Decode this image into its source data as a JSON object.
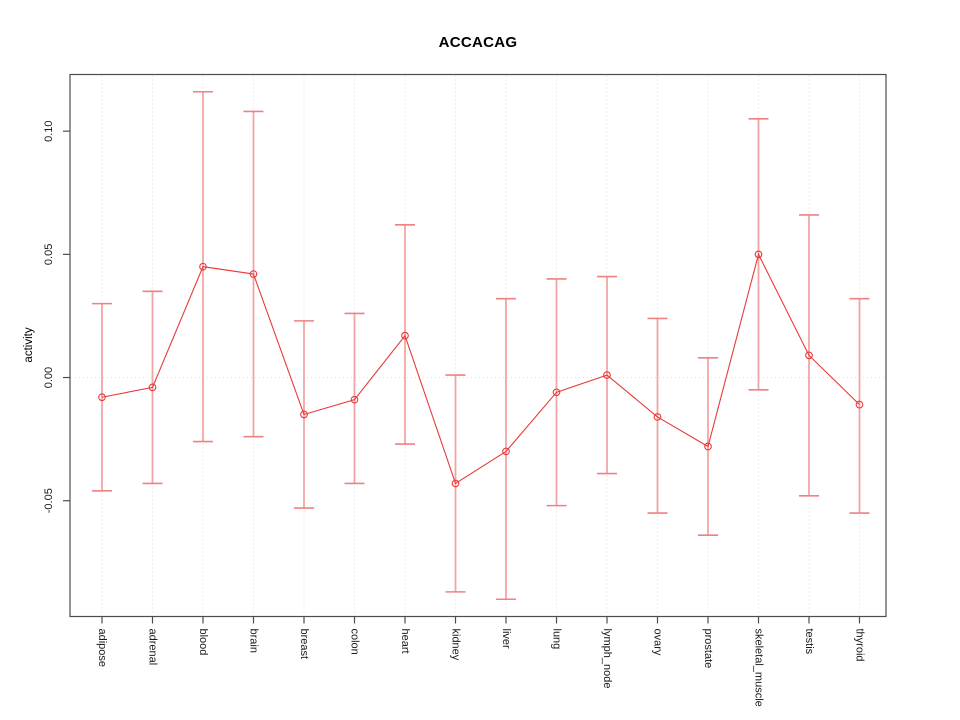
{
  "chart_data": {
    "type": "line",
    "title": "ACCACAG",
    "ylabel": "activity",
    "xlabel": "",
    "legend": "none",
    "grid": "vertical-dotted",
    "zero_line_dotted": true,
    "categories": [
      "adipose",
      "adrenal",
      "blood",
      "brain",
      "breast",
      "colon",
      "heart",
      "kidney",
      "liver",
      "lung",
      "lymph_node",
      "ovary",
      "prostate",
      "skeletal_muscle",
      "testis",
      "thyroid"
    ],
    "series": [
      {
        "name": "activity",
        "values": [
          -0.008,
          -0.004,
          0.045,
          0.042,
          -0.015,
          -0.009,
          0.017,
          -0.043,
          -0.03,
          -0.006,
          0.001,
          -0.016,
          -0.028,
          0.05,
          0.009,
          -0.011
        ]
      }
    ],
    "error_low": [
      -0.046,
      -0.043,
      -0.026,
      -0.024,
      -0.053,
      -0.043,
      -0.027,
      -0.087,
      -0.09,
      -0.052,
      -0.039,
      -0.055,
      -0.064,
      -0.005,
      -0.048,
      -0.055
    ],
    "error_high": [
      0.03,
      0.035,
      0.116,
      0.108,
      0.023,
      0.026,
      0.062,
      0.001,
      0.032,
      0.04,
      0.041,
      0.024,
      0.008,
      0.105,
      0.066,
      0.032
    ],
    "yticks": [
      -0.05,
      0,
      0.05,
      0.1
    ],
    "ytick_labels": [
      "-0.05",
      "0.00",
      "0.05",
      "0.10"
    ],
    "ylim": [
      -0.097,
      0.123
    ],
    "marker": "open-circle",
    "colors": {
      "line": "#e73b3b",
      "marker": "#e73b3b",
      "error_bar": "#f29b9b",
      "error_cap": "#ee8181",
      "grid": "#dcdcdc",
      "zero_line": "#e8e0e0",
      "axis": "#4d4d4d",
      "text": "#1a1a1a"
    }
  }
}
